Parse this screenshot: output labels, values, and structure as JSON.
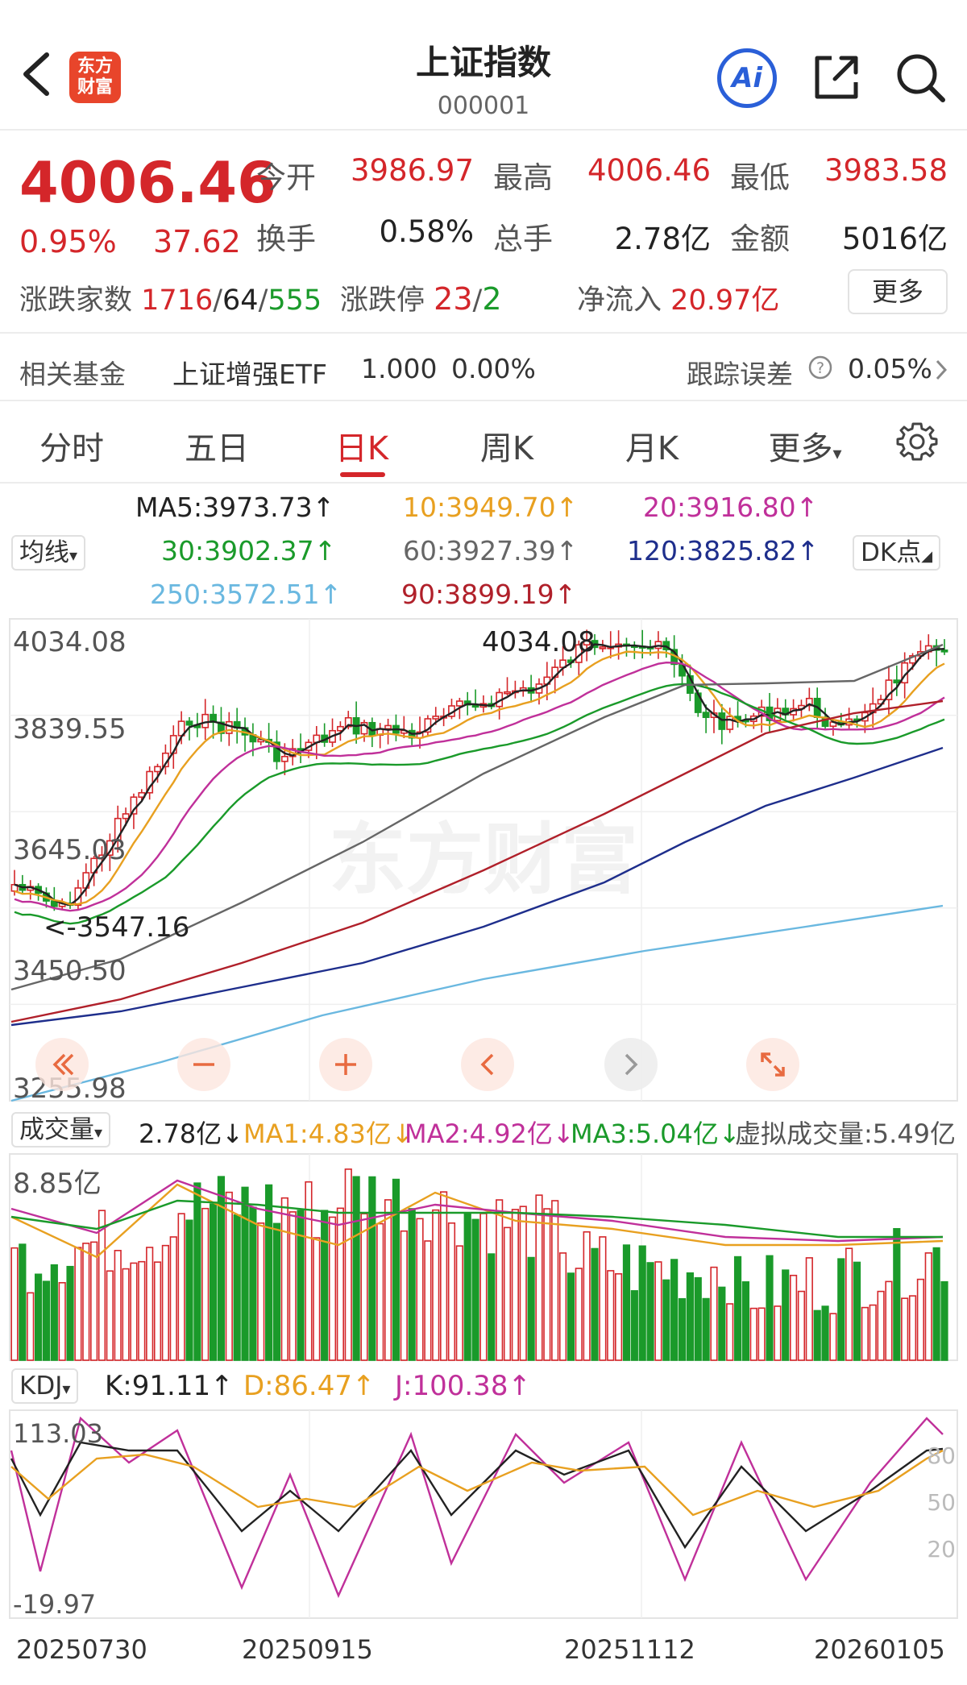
{
  "header": {
    "title": "上证指数",
    "code": "000001",
    "logo_line1": "东方",
    "logo_line2": "财富",
    "ai_label": "Ai"
  },
  "quote": {
    "price": "4006.46",
    "change_pct": "0.95%",
    "change": "37.62",
    "open_label": "今开",
    "open": "3986.97",
    "high_label": "最高",
    "high": "4006.46",
    "low_label": "最低",
    "low": "3983.58",
    "turnover_label": "换手",
    "turnover": "0.58%",
    "volume_label": "总手",
    "volume": "2.78亿",
    "amount_label": "金额",
    "amount": "5016亿",
    "breadth_label": "涨跌家数",
    "up_count": "1716",
    "flat_count": "64",
    "down_count": "555",
    "limit_label": "涨跌停",
    "limit_up": "23",
    "limit_down": "2",
    "netflow_label": "净流入",
    "netflow": "20.97亿",
    "more_label": "更多"
  },
  "fund": {
    "label": "相关基金",
    "name": "上证增强ETF",
    "nav": "1.000",
    "change": "0.00%",
    "tracking_label": "跟踪误差",
    "tracking_value": "0.05%"
  },
  "tabs": [
    {
      "label": "分时"
    },
    {
      "label": "五日"
    },
    {
      "label": "日K"
    },
    {
      "label": "周K"
    },
    {
      "label": "月K"
    },
    {
      "label": "更多"
    }
  ],
  "ma_legend": {
    "selector": "均线",
    "dk_label": "DK点",
    "ma5": "MA5:3973.73",
    "ma10": "10:3949.70",
    "ma20": "20:3916.80",
    "ma30": "30:3902.37",
    "ma60": "60:3927.39",
    "ma120": "120:3825.82",
    "ma250": "250:3572.51",
    "ma90": "90:3899.19",
    "colors": {
      "ma5": "#222222",
      "ma10": "#e8a020",
      "ma20": "#c0309a",
      "ma30": "#1a9a2a",
      "ma60": "#666666",
      "ma120": "#1e2e8c",
      "ma250": "#6ab8e0",
      "ma90": "#b0202a"
    }
  },
  "kline": {
    "y_labels": [
      "4034.08",
      "3839.55",
      "3645.03",
      "3450.50",
      "3255.98"
    ],
    "high_marker": "4034.08",
    "low_marker": "<-3547.16",
    "watermark": "东方财富"
  },
  "volume": {
    "selector": "成交量",
    "current": "2.78亿",
    "ma1": "MA1:4.83亿",
    "ma2": "MA2:4.92亿",
    "ma3": "MA3:5.04亿",
    "virtual": "虚拟成交量:5.49亿",
    "y_label": "8.85亿"
  },
  "kdj": {
    "selector": "KDJ",
    "k": "K:91.11",
    "d": "D:86.47",
    "j": "J:100.38",
    "y_top": "113.03",
    "y_bottom": "-19.97",
    "ref_80": "80",
    "ref_50": "50",
    "ref_20": "20"
  },
  "dates": [
    "20250730",
    "20250915",
    "20251112",
    "20260105"
  ]
}
